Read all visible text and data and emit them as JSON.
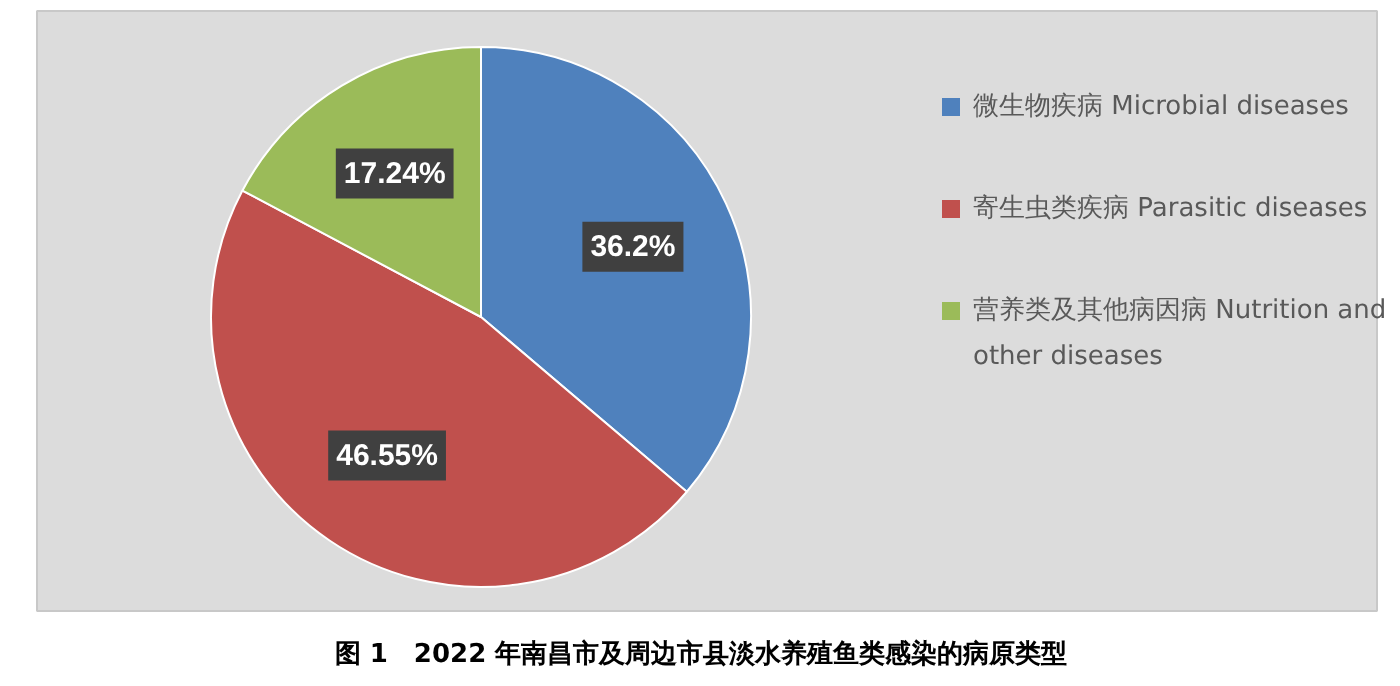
{
  "chart_data": {
    "type": "pie",
    "categories": [
      "微生物疾病 Microbial diseases",
      "寄生虫类疾病 Parasitic diseases",
      "营养类及其他病因病 Nutrition and other diseases"
    ],
    "values": [
      36.2,
      46.55,
      17.24
    ],
    "colors": [
      "#4f81bd",
      "#c0504d",
      "#9bbb59"
    ],
    "value_labels": [
      "36.2%",
      "46.55%",
      "17.24%"
    ],
    "legend": "right",
    "annotations": [
      "图 1　2022 年南昌市及周边市县淡水养殖鱼类感染的病原类型"
    ]
  }
}
